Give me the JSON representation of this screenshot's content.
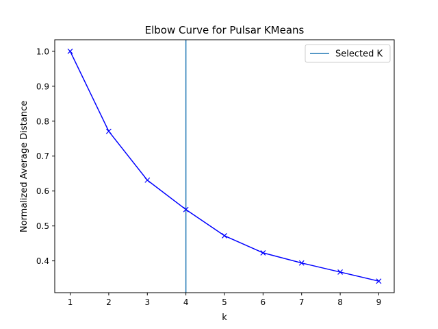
{
  "chart_data": {
    "type": "line",
    "title": "Elbow Curve for Pulsar KMeans",
    "xlabel": "k",
    "ylabel": "Normalized Average Distance",
    "x": [
      1,
      2,
      3,
      4,
      5,
      6,
      7,
      8,
      9
    ],
    "series": [
      {
        "values": [
          1.0,
          0.771,
          0.631,
          0.547,
          0.472,
          0.423,
          0.394,
          0.368,
          0.342
        ],
        "color": "#0000ff",
        "marker": "x"
      }
    ],
    "vline": {
      "x": 4,
      "label": "Selected K",
      "color": "#1f77b4"
    },
    "xticks": [
      "1",
      "2",
      "3",
      "4",
      "5",
      "6",
      "7",
      "8",
      "9"
    ],
    "yticks": [
      "0.4",
      "0.5",
      "0.6",
      "0.7",
      "0.8",
      "0.9",
      "1.0"
    ],
    "xlim": [
      0.6,
      9.4
    ],
    "ylim": [
      0.309,
      1.033
    ],
    "grid": false,
    "legend": {
      "position": "top-right",
      "entries": [
        "Selected K"
      ]
    }
  }
}
